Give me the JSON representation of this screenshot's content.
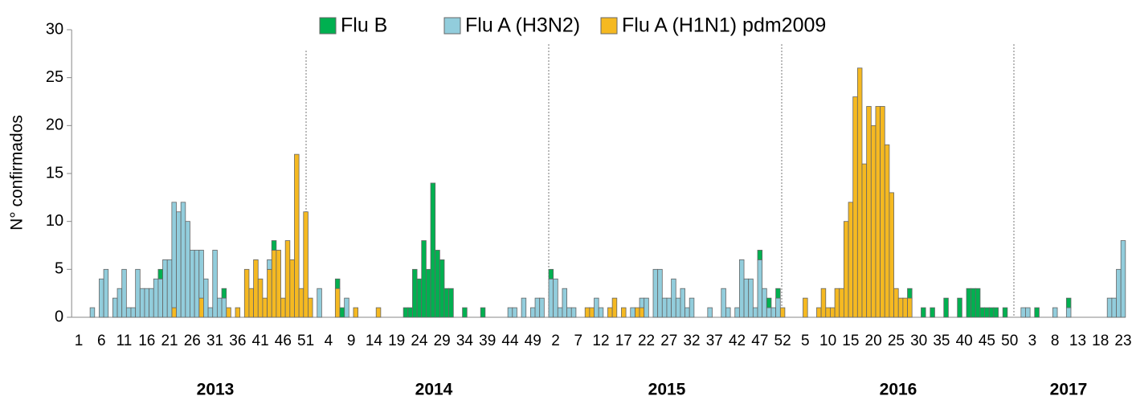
{
  "chart_data": {
    "type": "bar",
    "stacked": true,
    "y_label": "N° confirmados",
    "ylim": [
      0,
      30
    ],
    "yticks": [
      0,
      5,
      10,
      15,
      20,
      25,
      30
    ],
    "year_labels": [
      "2013",
      "2014",
      "2015",
      "2016",
      "2017"
    ],
    "categories": [
      "1",
      null,
      null,
      null,
      null,
      "6",
      null,
      null,
      null,
      null,
      "11",
      null,
      null,
      null,
      null,
      "16",
      null,
      null,
      null,
      null,
      "21",
      null,
      null,
      null,
      null,
      "26",
      null,
      null,
      null,
      null,
      "31",
      null,
      null,
      null,
      null,
      "36",
      null,
      null,
      null,
      null,
      "41",
      null,
      null,
      null,
      null,
      "46",
      null,
      null,
      null,
      null,
      "51",
      null,
      null,
      null,
      null,
      "4",
      null,
      null,
      null,
      null,
      "9",
      null,
      null,
      null,
      null,
      "14",
      null,
      null,
      null,
      null,
      "19",
      null,
      null,
      null,
      null,
      "24",
      null,
      null,
      null,
      null,
      "29",
      null,
      null,
      null,
      null,
      "34",
      null,
      null,
      null,
      null,
      "39",
      null,
      null,
      null,
      null,
      "44",
      null,
      null,
      null,
      null,
      "49",
      null,
      null,
      null,
      null,
      "2",
      null,
      null,
      null,
      null,
      "7",
      null,
      null,
      null,
      null,
      "12",
      null,
      null,
      null,
      null,
      "17",
      null,
      null,
      null,
      null,
      "22",
      null,
      null,
      null,
      null,
      "27",
      null,
      null,
      null,
      null,
      "32",
      null,
      null,
      null,
      null,
      "37",
      null,
      null,
      null,
      null,
      "42",
      null,
      null,
      null,
      null,
      "47",
      null,
      null,
      null,
      null,
      "52",
      null,
      null,
      null,
      null,
      "5",
      null,
      null,
      null,
      null,
      "10",
      null,
      null,
      null,
      null,
      "15",
      null,
      null,
      null,
      null,
      "20",
      null,
      null,
      null,
      null,
      "25",
      null,
      null,
      null,
      null,
      "30",
      null,
      null,
      null,
      null,
      "35",
      null,
      null,
      null,
      null,
      "40",
      null,
      null,
      null,
      null,
      "45",
      null,
      null,
      null,
      null,
      "50",
      null,
      null,
      null,
      null,
      "3",
      null,
      null,
      null,
      null,
      "8",
      null,
      null,
      null,
      null,
      "13",
      null,
      null,
      null,
      null,
      "18",
      null,
      null,
      null,
      null,
      "23"
    ],
    "series": [
      {
        "name": "Flu B",
        "color": "#00b050",
        "values": [
          0,
          0,
          0,
          0,
          0,
          0,
          0,
          0,
          0,
          0,
          0,
          0,
          0,
          0,
          0,
          0,
          0,
          0,
          1,
          0,
          0,
          0,
          0,
          0,
          0,
          0,
          0,
          0,
          0,
          0,
          0,
          0,
          1,
          0,
          0,
          0,
          0,
          0,
          0,
          0,
          0,
          0,
          0,
          1,
          0,
          0,
          0,
          0,
          0,
          0,
          0,
          0,
          0,
          0,
          0,
          0,
          0,
          1,
          1,
          0,
          0,
          0,
          0,
          0,
          0,
          0,
          0,
          0,
          0,
          0,
          0,
          0,
          1,
          1,
          5,
          4,
          8,
          5,
          14,
          7,
          6,
          3,
          3,
          0,
          0,
          1,
          0,
          0,
          0,
          1,
          0,
          0,
          0,
          0,
          0,
          0,
          0,
          0,
          0,
          0,
          0,
          0,
          0,
          0,
          1,
          0,
          0,
          0,
          0,
          0,
          0,
          0,
          0,
          0,
          0,
          0,
          0,
          0,
          0,
          0,
          0,
          0,
          0,
          0,
          0,
          0,
          0,
          0,
          0,
          0,
          0,
          0,
          0,
          0,
          0,
          0,
          0,
          0,
          0,
          0,
          0,
          0,
          0,
          0,
          0,
          0,
          0,
          0,
          0,
          0,
          1,
          0,
          1,
          0,
          1,
          0,
          0,
          0,
          0,
          0,
          0,
          0,
          0,
          0,
          0,
          0,
          0,
          0,
          0,
          0,
          0,
          0,
          0,
          0,
          0,
          0,
          0,
          0,
          0,
          0,
          0,
          0,
          0,
          1,
          0,
          0,
          1,
          0,
          1,
          0,
          0,
          2,
          0,
          0,
          2,
          0,
          3,
          3,
          3,
          1,
          1,
          1,
          1,
          0,
          1,
          0,
          0,
          0,
          0,
          0,
          0,
          1,
          0,
          0,
          0,
          0,
          0,
          0,
          1,
          0,
          0,
          0,
          0,
          0,
          0,
          0,
          0,
          0,
          0,
          0,
          0
        ]
      },
      {
        "name": "Flu A (H3N2)",
        "color": "#92cddc",
        "values": [
          0,
          0,
          0,
          1,
          0,
          4,
          5,
          0,
          2,
          3,
          5,
          1,
          1,
          5,
          3,
          3,
          3,
          4,
          4,
          6,
          6,
          11,
          11,
          12,
          10,
          7,
          7,
          5,
          4,
          1,
          7,
          2,
          2,
          0,
          0,
          0,
          0,
          0,
          0,
          0,
          0,
          0,
          1,
          0,
          0,
          0,
          0,
          0,
          0,
          0,
          0,
          0,
          0,
          3,
          0,
          0,
          0,
          0,
          0,
          2,
          0,
          0,
          0,
          0,
          0,
          0,
          0,
          0,
          0,
          0,
          0,
          0,
          0,
          0,
          0,
          0,
          0,
          0,
          0,
          0,
          0,
          0,
          0,
          0,
          0,
          0,
          0,
          0,
          0,
          0,
          0,
          0,
          0,
          0,
          0,
          1,
          1,
          0,
          2,
          0,
          1,
          2,
          2,
          0,
          4,
          4,
          1,
          3,
          1,
          1,
          0,
          0,
          0,
          0,
          2,
          1,
          0,
          0,
          0,
          0,
          0,
          0,
          1,
          0,
          1,
          2,
          0,
          5,
          5,
          2,
          2,
          4,
          2,
          3,
          1,
          2,
          0,
          0,
          0,
          1,
          0,
          0,
          3,
          1,
          0,
          1,
          6,
          4,
          4,
          1,
          6,
          3,
          1,
          1,
          2,
          0,
          0,
          0,
          0,
          0,
          0,
          0,
          0,
          0,
          0,
          0,
          0,
          0,
          0,
          0,
          0,
          0,
          0,
          0,
          0,
          0,
          0,
          0,
          0,
          0,
          0,
          0,
          0,
          0,
          0,
          0,
          0,
          0,
          0,
          0,
          0,
          0,
          0,
          0,
          0,
          0,
          0,
          0,
          0,
          0,
          0,
          0,
          0,
          0,
          0,
          0,
          0,
          0,
          1,
          1,
          0,
          0,
          0,
          0,
          0,
          1,
          0,
          0,
          1,
          0,
          0,
          0,
          0,
          0,
          0,
          0,
          0,
          2,
          2,
          5,
          8
        ]
      },
      {
        "name": "Flu A (H1N1) pdm2009",
        "color": "#f5b921",
        "values": [
          0,
          0,
          0,
          0,
          0,
          0,
          0,
          0,
          0,
          0,
          0,
          0,
          0,
          0,
          0,
          0,
          0,
          0,
          0,
          0,
          0,
          1,
          0,
          0,
          0,
          0,
          0,
          2,
          0,
          0,
          0,
          0,
          0,
          1,
          0,
          1,
          0,
          5,
          3,
          6,
          4,
          2,
          5,
          7,
          7,
          2,
          8,
          6,
          17,
          3,
          11,
          2,
          0,
          0,
          0,
          0,
          0,
          3,
          0,
          0,
          0,
          1,
          0,
          0,
          0,
          0,
          1,
          0,
          0,
          0,
          0,
          0,
          0,
          0,
          0,
          0,
          0,
          0,
          0,
          0,
          0,
          0,
          0,
          0,
          0,
          0,
          0,
          0,
          0,
          0,
          0,
          0,
          0,
          0,
          0,
          0,
          0,
          0,
          0,
          0,
          0,
          0,
          0,
          0,
          0,
          0,
          0,
          0,
          0,
          0,
          0,
          0,
          1,
          1,
          0,
          0,
          0,
          1,
          2,
          0,
          1,
          0,
          0,
          1,
          1,
          0,
          0,
          0,
          0,
          0,
          0,
          0,
          0,
          0,
          0,
          0,
          0,
          0,
          0,
          0,
          0,
          0,
          0,
          0,
          0,
          0,
          0,
          0,
          0,
          0,
          0,
          0,
          0,
          0,
          0,
          1,
          0,
          0,
          0,
          0,
          2,
          0,
          0,
          1,
          3,
          1,
          1,
          3,
          3,
          10,
          12,
          23,
          26,
          16,
          22,
          20,
          22,
          22,
          18,
          13,
          3,
          2,
          2,
          2,
          0,
          0,
          0,
          0,
          0,
          0,
          0,
          0,
          0,
          0,
          0,
          0,
          0,
          0,
          0,
          0,
          0,
          0,
          0,
          0,
          0,
          0,
          0,
          0,
          0,
          0,
          0,
          0,
          0,
          0,
          0,
          0,
          0,
          0,
          0,
          0,
          0,
          0,
          0,
          0,
          0,
          0,
          0,
          0,
          0,
          0,
          0
        ]
      }
    ]
  }
}
